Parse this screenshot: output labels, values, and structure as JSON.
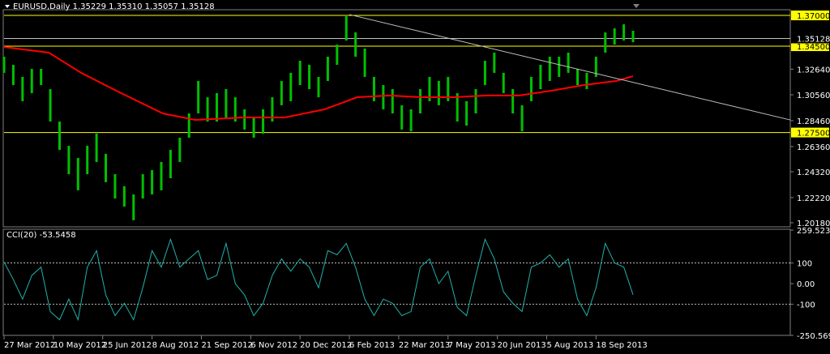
{
  "chart_data": [
    {
      "type": "ohlc",
      "title": "EURUSD,Daily  1.35229 1.35310 1.35057 1.35128",
      "color": "#00c000",
      "xlim": [
        0,
        510
      ],
      "ylim": [
        1.1985,
        1.3746
      ],
      "x": [
        0,
        6,
        12,
        18,
        24,
        30,
        36,
        42,
        48,
        54,
        60,
        66,
        72,
        78,
        84,
        90,
        96,
        102,
        108,
        114,
        120,
        126,
        132,
        138,
        144,
        150,
        156,
        162,
        168,
        174,
        180,
        186,
        192,
        198,
        204,
        210,
        216,
        222,
        228,
        234,
        240,
        246,
        252,
        258,
        264,
        270,
        276,
        282,
        288,
        294,
        300,
        306,
        312,
        318,
        324,
        330,
        336,
        342,
        348,
        354,
        360,
        366,
        372,
        378,
        384,
        390,
        396,
        402,
        408
      ],
      "high": [
        1.3365,
        1.3299,
        1.3201,
        1.3266,
        1.3266,
        1.3102,
        1.2839,
        1.2642,
        1.2544,
        1.2642,
        1.2741,
        1.2577,
        1.2412,
        1.2314,
        1.2248,
        1.2412,
        1.2445,
        1.2511,
        1.2609,
        1.2708,
        1.2905,
        1.3168,
        1.3036,
        1.3069,
        1.3102,
        1.3036,
        1.2938,
        1.2872,
        1.2938,
        1.3036,
        1.3168,
        1.3234,
        1.3332,
        1.3299,
        1.3201,
        1.3365,
        1.3463,
        1.3693,
        1.3562,
        1.3431,
        1.3201,
        1.3135,
        1.3102,
        1.2971,
        1.2938,
        1.3102,
        1.3201,
        1.3168,
        1.3201,
        1.3069,
        1.3004,
        1.3102,
        1.3332,
        1.3398,
        1.3234,
        1.3102,
        1.2971,
        1.3201,
        1.3299,
        1.3365,
        1.3365,
        1.3398,
        1.3266,
        1.3234,
        1.3365,
        1.3562,
        1.3595,
        1.3628,
        1.3575
      ],
      "low": [
        1.3234,
        1.3135,
        1.3004,
        1.3069,
        1.3135,
        1.2839,
        1.2609,
        1.2412,
        1.2281,
        1.2412,
        1.2511,
        1.2347,
        1.2215,
        1.2149,
        1.2038,
        1.2215,
        1.2248,
        1.2281,
        1.2379,
        1.2511,
        1.2708,
        1.2905,
        1.2839,
        1.2839,
        1.2872,
        1.2839,
        1.2774,
        1.2708,
        1.2741,
        1.2839,
        1.2971,
        1.3004,
        1.3135,
        1.3102,
        1.3036,
        1.3168,
        1.3299,
        1.3496,
        1.3365,
        1.3201,
        1.3004,
        1.2938,
        1.2905,
        1.2774,
        1.276,
        1.2905,
        1.3004,
        1.2971,
        1.3004,
        1.2839,
        1.2806,
        1.2905,
        1.3135,
        1.3234,
        1.3069,
        1.2905,
        1.276,
        1.3004,
        1.3102,
        1.3168,
        1.3201,
        1.3234,
        1.3135,
        1.3102,
        1.3201,
        1.3398,
        1.3463,
        1.3496,
        1.3483
      ],
      "yticks": [
        {
          "value": 1.3264,
          "label": "1.32640"
        },
        {
          "value": 1.3056,
          "label": "1.30560"
        },
        {
          "value": 1.2846,
          "label": "1.28460"
        },
        {
          "value": 1.2636,
          "label": "1.26360"
        },
        {
          "value": 1.2432,
          "label": "1.24320"
        },
        {
          "value": 1.2222,
          "label": "1.22220"
        },
        {
          "value": 1.2018,
          "label": "1.20180"
        }
      ],
      "xticks": [
        {
          "value": 0,
          "label": "27 Mar 2012"
        },
        {
          "value": 32,
          "label": "10 May 2012"
        },
        {
          "value": 64,
          "label": "25 Jun 2012"
        },
        {
          "value": 96,
          "label": "8 Aug 2012"
        },
        {
          "value": 128,
          "label": "21 Sep 2012"
        },
        {
          "value": 160,
          "label": "6 Nov 2012"
        },
        {
          "value": 192,
          "label": "20 Dec 2012"
        },
        {
          "value": 224,
          "label": "6 Feb 2013"
        },
        {
          "value": 256,
          "label": "22 Mar 2013"
        },
        {
          "value": 288,
          "label": "7 May 2013"
        },
        {
          "value": 320,
          "label": "20 Jun 2013"
        },
        {
          "value": 352,
          "label": "5 Aug 2013"
        },
        {
          "value": 384,
          "label": "18 Sep 2013"
        }
      ],
      "hlines": [
        {
          "value": 1.37,
          "label": "1.37000",
          "color": "#ffff00"
        },
        {
          "value": 1.345,
          "label": "1.34500",
          "color": "#ffff00"
        },
        {
          "value": 1.275,
          "label": "1.27500",
          "color": "#ffff00"
        }
      ],
      "bid": {
        "value": 1.35128,
        "label": "1.35128",
        "color": "#c0c0c0"
      },
      "ma": {
        "color": "#ff0000",
        "x": [
          0,
          29,
          50,
          76,
          103,
          124,
          155,
          182,
          208,
          229,
          250,
          271,
          292,
          313,
          334,
          355,
          376,
          397,
          408
        ],
        "values": [
          1.3444,
          1.3398,
          1.3234,
          1.3069,
          1.2905,
          1.2852,
          1.2872,
          1.2872,
          1.2938,
          1.3036,
          1.305,
          1.3036,
          1.3036,
          1.305,
          1.305,
          1.3089,
          1.3135,
          1.3168,
          1.3207
        ]
      },
      "trendline": {
        "color": "#c0c0c0",
        "x": [
          224,
          510
        ],
        "values": [
          1.3707,
          1.2852
        ]
      }
    },
    {
      "type": "line",
      "title": "CCI(20) -53.5458",
      "color": "#20b2aa",
      "xlim": [
        0,
        510
      ],
      "ylim": [
        -250.569,
        259.5237
      ],
      "x": [
        0,
        6,
        12,
        18,
        24,
        30,
        36,
        42,
        48,
        54,
        60,
        66,
        72,
        78,
        84,
        90,
        96,
        102,
        108,
        114,
        120,
        126,
        132,
        138,
        144,
        150,
        156,
        162,
        168,
        174,
        180,
        186,
        192,
        198,
        204,
        210,
        216,
        222,
        228,
        234,
        240,
        246,
        252,
        258,
        264,
        270,
        276,
        282,
        288,
        294,
        300,
        306,
        312,
        318,
        324,
        330,
        336,
        342,
        348,
        354,
        360,
        366,
        372,
        378,
        384,
        390,
        396,
        402,
        408
      ],
      "values": [
        105,
        20,
        -75,
        40,
        80,
        -135,
        -175,
        -75,
        -175,
        80,
        160,
        -55,
        -155,
        -95,
        -175,
        -20,
        160,
        80,
        215,
        80,
        120,
        160,
        20,
        40,
        195,
        0,
        -55,
        -155,
        -95,
        40,
        120,
        60,
        120,
        80,
        -20,
        160,
        140,
        195,
        80,
        -75,
        -155,
        -75,
        -95,
        -155,
        -135,
        80,
        120,
        0,
        60,
        -115,
        -155,
        40,
        215,
        120,
        -40,
        -95,
        -135,
        80,
        100,
        140,
        80,
        120,
        -75,
        -155,
        -20,
        195,
        100,
        80,
        -53.5458
      ],
      "yticks": [
        259.5237,
        100,
        {
          "value": 0,
          "label": "0.00"
        },
        -100,
        -250.569
      ],
      "levels": [
        100,
        -100
      ]
    }
  ]
}
